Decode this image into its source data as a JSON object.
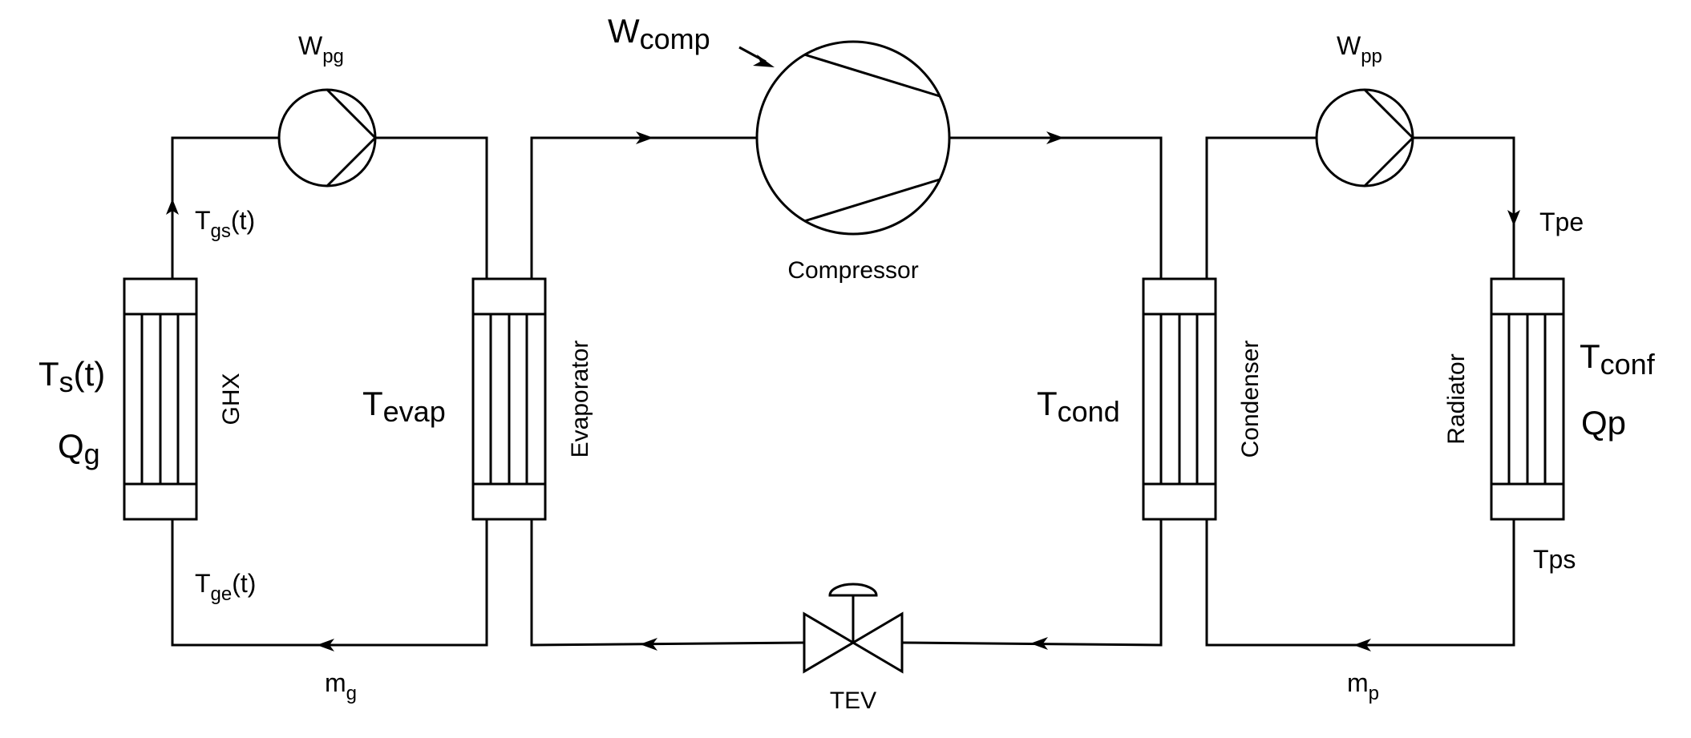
{
  "colors": {
    "stroke": "#000000",
    "background": "#ffffff"
  },
  "components": {
    "compressor": "Compressor",
    "evaporator": "Evaporator",
    "condenser": "Condenser",
    "radiator": "Radiator",
    "ghx": "GHX",
    "valve": "TEV"
  },
  "symbols": {
    "w_pg": {
      "base": "W",
      "sub": "pg"
    },
    "w_comp": {
      "base": "W",
      "sub": "comp"
    },
    "w_pp": {
      "base": "W",
      "sub": "pp"
    },
    "t_gs": {
      "base": "T",
      "sub": "gs",
      "suffix": "(t)"
    },
    "t_ge": {
      "base": "T",
      "sub": "ge",
      "suffix": "(t)"
    },
    "t_s": {
      "base": "T",
      "sub": "s",
      "suffix": "(t)"
    },
    "q_g": {
      "base": "Q",
      "sub": "g"
    },
    "m_g": {
      "base": "m",
      "sub": "g"
    },
    "m_p": {
      "base": "m",
      "sub": "p"
    },
    "t_evap": {
      "base": "T",
      "sub": "evap"
    },
    "t_cond": {
      "base": "T",
      "sub": "cond"
    },
    "t_conf": {
      "base": "T",
      "sub": "conf"
    },
    "t_pe": "Tpe",
    "t_ps": "Tps",
    "qp": "Qp"
  }
}
